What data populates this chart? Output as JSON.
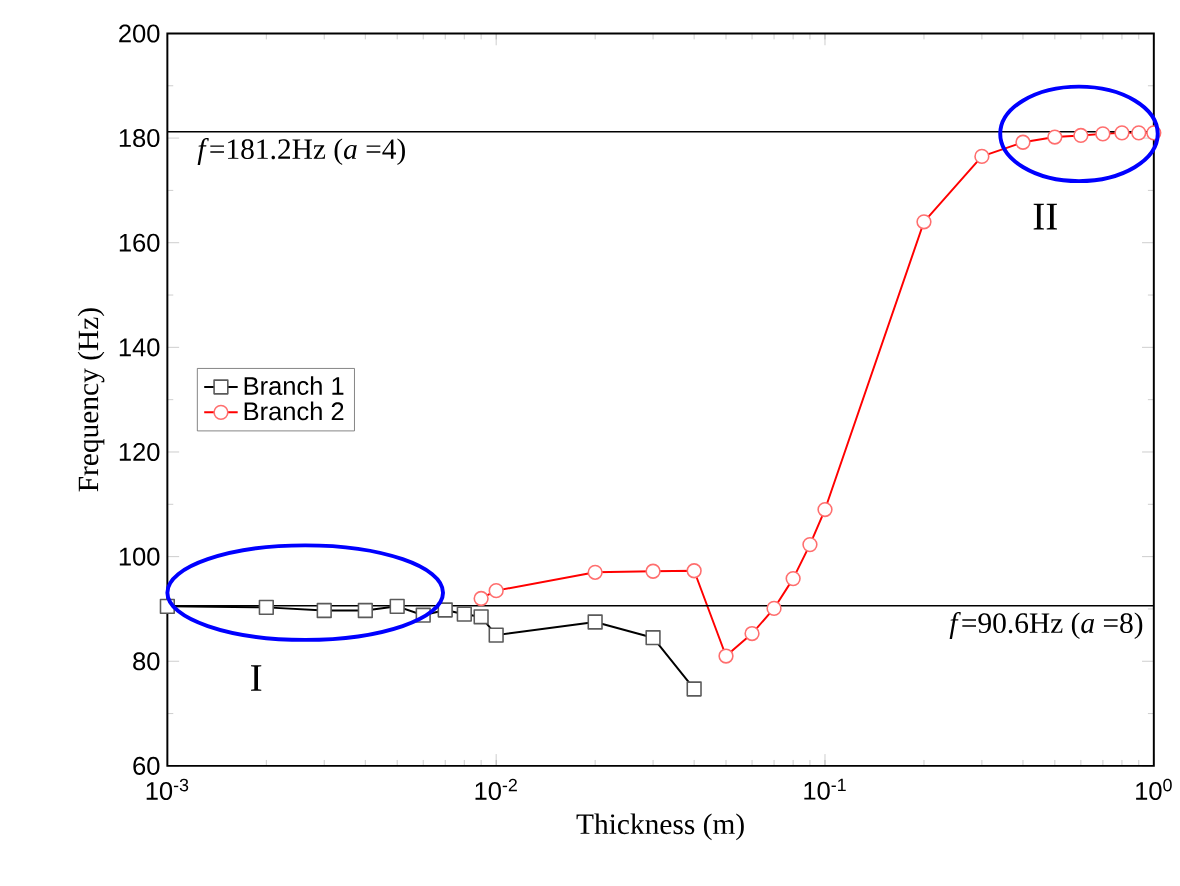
{
  "chart_data": {
    "type": "line",
    "xlabel": "Thickness (m)",
    "ylabel": "Frequency (Hz)",
    "log": "x",
    "xlim": [
      0.001,
      1
    ],
    "xticks": [
      {
        "value": 0.001,
        "label": "10$^{-3}$"
      },
      {
        "value": 0.01,
        "label": "10$^{-2}$"
      },
      {
        "value": 0.1,
        "label": "10$^{-1}$"
      },
      {
        "value": 1,
        "label": "10$^{0}$"
      }
    ],
    "ylim": [
      60,
      200
    ],
    "yticks": [
      60,
      80,
      100,
      120,
      140,
      160,
      180,
      200
    ],
    "legend": "left",
    "grid": false,
    "line_style": "solid",
    "series": [
      {
        "name": "Branch 1",
        "color": "#000000",
        "marker": "square",
        "x": [
          0.001,
          0.002,
          0.003,
          0.004,
          0.005,
          0.006,
          0.007,
          0.008,
          0.009,
          0.01,
          0.02,
          0.03,
          0.04
        ],
        "values": [
          90.5,
          90.3,
          89.7,
          89.7,
          90.5,
          88.8,
          89.8,
          89,
          88.5,
          85,
          87.5,
          84.5,
          74.7
        ]
      },
      {
        "name": "Branch 2",
        "color": "#ff0000",
        "marker": "circle",
        "x": [
          0.009,
          0.01,
          0.02,
          0.03,
          0.04,
          0.05,
          0.06,
          0.07,
          0.08,
          0.09,
          0.1,
          0.2,
          0.3,
          0.4,
          0.5,
          0.6,
          0.7,
          0.8,
          0.9,
          1
        ],
        "values": [
          92,
          93.5,
          97,
          97.2,
          97.3,
          81,
          85.3,
          90.1,
          95.8,
          102.3,
          109,
          164,
          176.5,
          179.2,
          180.2,
          180.5,
          180.8,
          181,
          181,
          181
        ]
      }
    ],
    "ref_lines": [
      {
        "axis": "y",
        "value": 181.2,
        "label": "*f*=181.2Hz (*a* =4)",
        "color": "#000000"
      },
      {
        "axis": "y",
        "value": 90.6,
        "label": "*f*=90.6Hz (*a* =8)",
        "color": "#000000"
      }
    ],
    "annotations": [
      "I",
      "II"
    ]
  }
}
